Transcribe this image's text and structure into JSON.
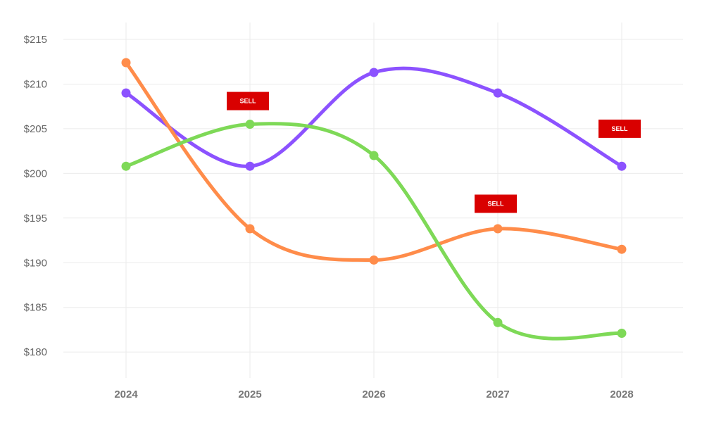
{
  "chart_data": {
    "type": "line",
    "title": "",
    "xlabel": "",
    "ylabel": "",
    "categories": [
      "2024",
      "2025",
      "2026",
      "2027",
      "2028"
    ],
    "yticks": [
      "$180",
      "$185",
      "$190",
      "$195",
      "$200",
      "$205",
      "$210",
      "$215"
    ],
    "ytick_values": [
      180,
      185,
      190,
      195,
      200,
      205,
      210,
      215
    ],
    "ylim": [
      180,
      215
    ],
    "grid": true,
    "series": [
      {
        "name": "Purple",
        "color": "#8c52ff",
        "values": [
          209,
          200.8,
          211.3,
          209,
          200.8
        ]
      },
      {
        "name": "Orange",
        "color": "#ff8c4a",
        "values": [
          212.4,
          193.8,
          190.3,
          193.8,
          191.5
        ]
      },
      {
        "name": "Green",
        "color": "#7ed957",
        "values": [
          200.8,
          205.5,
          202,
          183.3,
          182.1
        ]
      }
    ],
    "annotations": [
      {
        "text": "SELL",
        "category": "2025",
        "y": 208.1,
        "color": "#d90000"
      },
      {
        "text": "SELL",
        "category": "2027",
        "y": 196.6,
        "color": "#d90000"
      },
      {
        "text": "SELL",
        "category": "2028",
        "y": 205,
        "color": "#d90000"
      }
    ]
  }
}
